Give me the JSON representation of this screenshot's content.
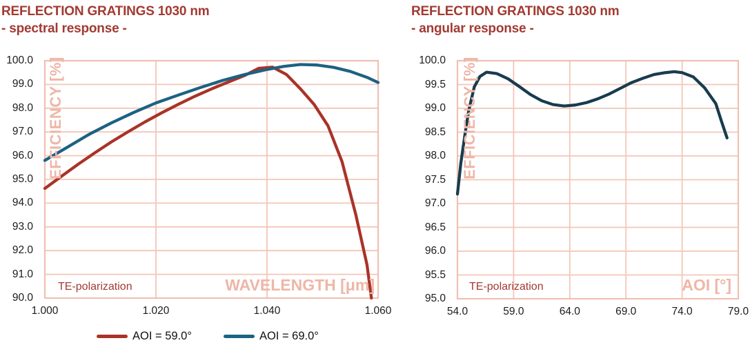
{
  "figure": {
    "background": "#ffffff"
  },
  "colors": {
    "title_text": "#a23a32",
    "grid": "#f3c6b8",
    "plot_border": "#efc0b2",
    "axis_label": "#eeb6a7",
    "tick_text": "#1c1c1c",
    "legend_text": "#111111"
  },
  "chart_data": [
    {
      "type": "line",
      "title": "REFLECTION GRATINGS 1030 nm",
      "subtitle": "- spectral response -",
      "xlabel": "WAVELENGTH [μm]",
      "ylabel": "EFFICIENCY [%]",
      "annotation": "TE-polarization",
      "xlim": [
        1.0,
        1.06
      ],
      "ylim": [
        90.0,
        100.0
      ],
      "x_ticks": [
        "1.000",
        "1.020",
        "1.040",
        "1.060"
      ],
      "y_ticks": [
        "100.0",
        "99.0",
        "98.0",
        "97.0",
        "96.0",
        "95.0",
        "94.0",
        "93.0",
        "92.0",
        "91.0",
        "90.0"
      ],
      "grid": true,
      "legend_position": "bottom",
      "series": [
        {
          "name": "AOI = 59.0°",
          "color": "#a93327",
          "x": [
            1.0,
            1.003,
            1.006,
            1.009,
            1.012,
            1.015,
            1.018,
            1.021,
            1.024,
            1.027,
            1.03,
            1.033,
            1.036,
            1.0385,
            1.041,
            1.0435,
            1.046,
            1.0485,
            1.051,
            1.0535,
            1.056,
            1.058,
            1.0588
          ],
          "y": [
            94.62,
            95.13,
            95.64,
            96.12,
            96.58,
            97.01,
            97.42,
            97.8,
            98.16,
            98.5,
            98.81,
            99.1,
            99.38,
            99.68,
            99.73,
            99.42,
            98.82,
            98.15,
            97.25,
            95.75,
            93.5,
            91.4,
            90.0
          ]
        },
        {
          "name": "AOI = 69.0°",
          "color": "#1c6282",
          "x": [
            1.0,
            1.004,
            1.008,
            1.012,
            1.016,
            1.02,
            1.024,
            1.028,
            1.032,
            1.036,
            1.04,
            1.043,
            1.046,
            1.049,
            1.052,
            1.055,
            1.058,
            1.06
          ],
          "y": [
            95.8,
            96.35,
            96.9,
            97.38,
            97.82,
            98.22,
            98.55,
            98.87,
            99.17,
            99.42,
            99.63,
            99.76,
            99.84,
            99.82,
            99.72,
            99.55,
            99.3,
            99.08
          ]
        }
      ]
    },
    {
      "type": "line",
      "title": "REFLECTION GRATINGS 1030 nm",
      "subtitle": "- angular response -",
      "xlabel": "AOI [°]",
      "ylabel": "EFFICIENCY [%]",
      "annotation": "TE-polarization",
      "xlim": [
        54.0,
        79.0
      ],
      "ylim": [
        95.0,
        100.0
      ],
      "x_ticks": [
        "54.0",
        "59.0",
        "64.0",
        "69.0",
        "74.0",
        "79.0"
      ],
      "y_ticks": [
        "100.0",
        "99.5",
        "99.0",
        "98.5",
        "98.0",
        "97.5",
        "97.0",
        "96.5",
        "96.0",
        "95.5",
        "95.0"
      ],
      "grid": true,
      "legend_position": "none",
      "series": [
        {
          "name": "",
          "color": "#183c4e",
          "x": [
            54.0,
            54.3,
            54.7,
            55.0,
            55.5,
            56.0,
            56.6,
            57.5,
            58.5,
            59.5,
            60.5,
            61.5,
            62.5,
            63.5,
            64.5,
            65.5,
            66.5,
            67.5,
            68.5,
            69.5,
            70.5,
            71.5,
            72.5,
            73.3,
            74.0,
            75.0,
            76.0,
            77.0,
            77.5,
            78.0
          ],
          "y": [
            97.2,
            97.85,
            98.5,
            98.95,
            99.45,
            99.67,
            99.76,
            99.73,
            99.62,
            99.46,
            99.29,
            99.16,
            99.08,
            99.05,
            99.07,
            99.12,
            99.2,
            99.3,
            99.42,
            99.54,
            99.63,
            99.71,
            99.75,
            99.77,
            99.75,
            99.66,
            99.43,
            99.1,
            98.73,
            98.38
          ]
        }
      ]
    }
  ]
}
